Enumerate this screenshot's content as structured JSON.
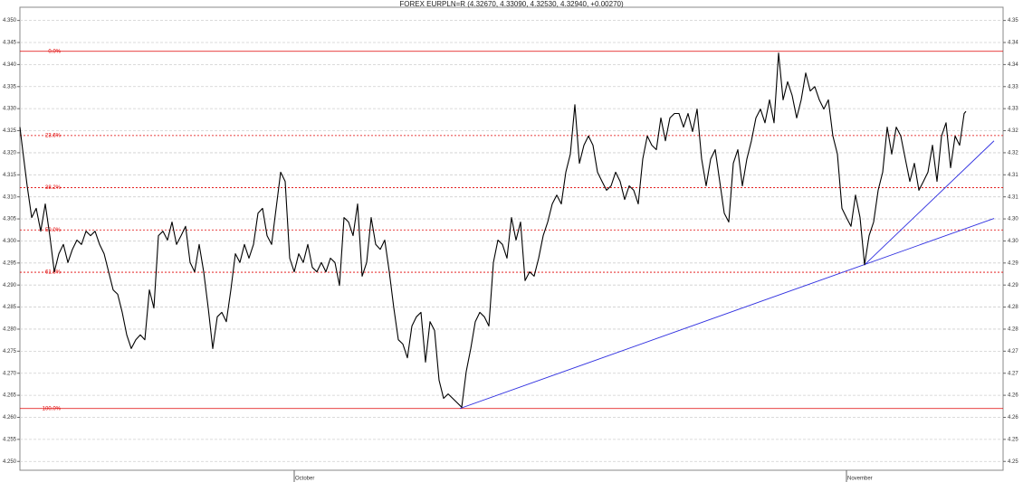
{
  "chart_data": {
    "type": "line",
    "title": "FOREX EURPLN=R (4.32670, 4.33090, 4.32530, 4.32940, +0.00270)",
    "xlim": [
      0,
      1086
    ],
    "ylim": [
      4.248,
      4.353
    ],
    "y2lim": [
      4.248,
      4.353
    ],
    "grid": true,
    "xticks": [
      {
        "value": 303,
        "label": "October"
      },
      {
        "value": 913,
        "label": "November"
      }
    ],
    "yticks": [
      {
        "value": 4.25,
        "label": "4.250"
      },
      {
        "value": 4.255,
        "label": "4.255"
      },
      {
        "value": 4.26,
        "label": "4.260"
      },
      {
        "value": 4.265,
        "label": "4.265"
      },
      {
        "value": 4.27,
        "label": "4.270"
      },
      {
        "value": 4.275,
        "label": "4.275"
      },
      {
        "value": 4.28,
        "label": "4.280"
      },
      {
        "value": 4.285,
        "label": "4.285"
      },
      {
        "value": 4.29,
        "label": "4.290"
      },
      {
        "value": 4.295,
        "label": "4.295"
      },
      {
        "value": 4.3,
        "label": "4.300"
      },
      {
        "value": 4.305,
        "label": "4.305"
      },
      {
        "value": 4.31,
        "label": "4.310"
      },
      {
        "value": 4.315,
        "label": "4.315"
      },
      {
        "value": 4.32,
        "label": "4.320"
      },
      {
        "value": 4.325,
        "label": "4.325"
      },
      {
        "value": 4.33,
        "label": "4.330"
      },
      {
        "value": 4.335,
        "label": "4.335"
      },
      {
        "value": 4.34,
        "label": "4.340"
      },
      {
        "value": 4.345,
        "label": "4.345"
      },
      {
        "value": 4.35,
        "label": "4.350"
      }
    ],
    "y2ticks": [
      {
        "value": 4.25,
        "label": "4.25"
      },
      {
        "value": 4.255,
        "label": "4.25"
      },
      {
        "value": 4.26,
        "label": "4.26"
      },
      {
        "value": 4.265,
        "label": "4.26"
      },
      {
        "value": 4.27,
        "label": "4.27"
      },
      {
        "value": 4.275,
        "label": "4.27"
      },
      {
        "value": 4.28,
        "label": "4.28"
      },
      {
        "value": 4.285,
        "label": "4.28"
      },
      {
        "value": 4.29,
        "label": "4.29"
      },
      {
        "value": 4.295,
        "label": "4.29"
      },
      {
        "value": 4.3,
        "label": "4.30"
      },
      {
        "value": 4.305,
        "label": "4.30"
      },
      {
        "value": 4.31,
        "label": "4.31"
      },
      {
        "value": 4.315,
        "label": "4.31"
      },
      {
        "value": 4.32,
        "label": "4.32"
      },
      {
        "value": 4.325,
        "label": "4.32"
      },
      {
        "value": 4.33,
        "label": "4.33"
      },
      {
        "value": 4.335,
        "label": "4.33"
      },
      {
        "value": 4.34,
        "label": "4.34"
      },
      {
        "value": 4.345,
        "label": "4.34"
      },
      {
        "value": 4.35,
        "label": "4.35"
      }
    ],
    "fib_levels": {
      "color": "#e00000",
      "levels": [
        {
          "label": "0.0%",
          "value": 4.343
        },
        {
          "label": "23.6%",
          "value": 4.3239
        },
        {
          "label": "38.2%",
          "value": 4.3121
        },
        {
          "label": "50.0%",
          "value": 4.3025
        },
        {
          "label": "61.8%",
          "value": 4.2929
        },
        {
          "label": "100.0%",
          "value": 4.262
        }
      ]
    },
    "trendlines": {
      "color": "#3030e0",
      "lines": [
        {
          "x": [
            486,
            1076
          ],
          "values": [
            4.262,
            4.3051
          ]
        },
        {
          "x": [
            933,
            1076
          ],
          "values": [
            4.2946,
            4.3227
          ]
        }
      ]
    },
    "series": [
      {
        "color": "#000000",
        "x": [
          0,
          3,
          8,
          13,
          18,
          23,
          28,
          33,
          38,
          43,
          48,
          53,
          58,
          63,
          68,
          73,
          78,
          83,
          88,
          93,
          98,
          103,
          108,
          113,
          118,
          123,
          128,
          133,
          138,
          143,
          148,
          153,
          158,
          163,
          168,
          173,
          178,
          183,
          188,
          193,
          198,
          203,
          208,
          213,
          218,
          223,
          228,
          233,
          238,
          243,
          248,
          253,
          258,
          263,
          268,
          273,
          278,
          283,
          288,
          293,
          298,
          303,
          308,
          313,
          318,
          323,
          328,
          333,
          338,
          343,
          348,
          353,
          358,
          363,
          368,
          373,
          378,
          383,
          388,
          393,
          398,
          403,
          408,
          413,
          418,
          423,
          428,
          433,
          438,
          443,
          448,
          453,
          458,
          463,
          468,
          473,
          478,
          483,
          488,
          493,
          498,
          503,
          508,
          513,
          518,
          523,
          528,
          533,
          538,
          543,
          548,
          553,
          558,
          563,
          568,
          573,
          578,
          583,
          588,
          593,
          598,
          603,
          608,
          613,
          618,
          623,
          628,
          633,
          638,
          643,
          648,
          653,
          658,
          663,
          668,
          673,
          678,
          683,
          688,
          693,
          698,
          703,
          708,
          713,
          718,
          723,
          728,
          733,
          738,
          743,
          748,
          753,
          758,
          763,
          768,
          773,
          778,
          783,
          788,
          793,
          798,
          803,
          808,
          813,
          818,
          823,
          828,
          833,
          838,
          843,
          848,
          853,
          858,
          863,
          868,
          873,
          878,
          883,
          888,
          893,
          898,
          903,
          908,
          913,
          918,
          923,
          928,
          933,
          938,
          943,
          948,
          953,
          958,
          963,
          968,
          973,
          978,
          983,
          988,
          993,
          998,
          1003,
          1008,
          1013,
          1018,
          1023,
          1028,
          1033,
          1038,
          1043,
          1045
        ],
        "values": [
          4.3258,
          4.3207,
          4.3125,
          4.3053,
          4.3074,
          4.3022,
          4.3084,
          4.3012,
          4.293,
          4.2971,
          4.2992,
          4.2951,
          4.2981,
          4.3002,
          4.2992,
          4.3022,
          4.3012,
          4.3022,
          4.2992,
          4.2971,
          4.293,
          4.2889,
          4.2879,
          4.2838,
          4.2787,
          4.2756,
          4.2776,
          4.2787,
          4.2776,
          4.2889,
          4.2848,
          4.3012,
          4.3022,
          4.3002,
          4.3043,
          4.2992,
          4.3012,
          4.3033,
          4.2951,
          4.293,
          4.2992,
          4.293,
          4.2848,
          4.2756,
          4.2828,
          4.2838,
          4.2817,
          4.2889,
          4.2971,
          4.2951,
          4.2992,
          4.2961,
          4.2992,
          4.3063,
          4.3074,
          4.3012,
          4.2992,
          4.3074,
          4.3156,
          4.3135,
          4.2961,
          4.293,
          4.2971,
          4.2951,
          4.2992,
          4.294,
          4.293,
          4.2951,
          4.293,
          4.2961,
          4.2951,
          4.2899,
          4.3053,
          4.3043,
          4.3012,
          4.3084,
          4.292,
          4.2951,
          4.3053,
          4.2992,
          4.2981,
          4.3002,
          4.293,
          4.2848,
          4.2776,
          4.2766,
          4.2735,
          4.2807,
          4.2828,
          4.2838,
          4.2725,
          4.2817,
          4.2797,
          4.2684,
          4.2643,
          4.2653,
          4.2643,
          4.2633,
          4.2623,
          4.2704,
          4.2756,
          4.2817,
          4.2838,
          4.2828,
          4.2807,
          4.2951,
          4.3002,
          4.2992,
          4.2961,
          4.3053,
          4.3002,
          4.3043,
          4.291,
          4.293,
          4.292,
          4.2961,
          4.3012,
          4.3043,
          4.3084,
          4.3104,
          4.3084,
          4.3156,
          4.3197,
          4.3309,
          4.3176,
          4.3217,
          4.3238,
          4.3217,
          4.3156,
          4.3135,
          4.3115,
          4.3125,
          4.3156,
          4.3135,
          4.3094,
          4.3125,
          4.3115,
          4.3084,
          4.3186,
          4.3238,
          4.3217,
          4.3207,
          4.3279,
          4.3227,
          4.3279,
          4.3289,
          4.3289,
          4.3258,
          4.3289,
          4.3248,
          4.3299,
          4.3186,
          4.3125,
          4.3186,
          4.3207,
          4.3135,
          4.3063,
          4.3043,
          4.3176,
          4.3207,
          4.3125,
          4.3186,
          4.3227,
          4.3279,
          4.3299,
          4.3268,
          4.332,
          4.3268,
          4.3426,
          4.332,
          4.3361,
          4.333,
          4.3279,
          4.332,
          4.3381,
          4.334,
          4.335,
          4.332,
          4.3299,
          4.332,
          4.3238,
          4.3197,
          4.3074,
          4.3053,
          4.3033,
          4.3104,
          4.3053,
          4.2946,
          4.3012,
          4.3043,
          4.3115,
          4.3156,
          4.3258,
          4.3197,
          4.3258,
          4.3238,
          4.3186,
          4.3135,
          4.3176,
          4.3115,
          4.3135,
          4.3156,
          4.3217,
          4.3135,
          4.3238,
          4.3268,
          4.3166,
          4.3238,
          4.3217,
          4.3289,
          4.3294
        ]
      }
    ]
  }
}
